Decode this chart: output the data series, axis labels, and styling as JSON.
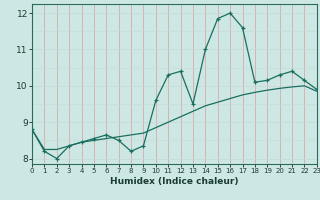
{
  "xlabel": "Humidex (Indice chaleur)",
  "bg_color": "#cde8e4",
  "grid_color_v": "#d9a0a0",
  "grid_color_h": "#c8d8d4",
  "line_color": "#1a6e60",
  "x_values": [
    0,
    1,
    2,
    3,
    4,
    5,
    6,
    7,
    8,
    9,
    10,
    11,
    12,
    13,
    14,
    15,
    16,
    17,
    18,
    19,
    20,
    21,
    22,
    23
  ],
  "y_main": [
    8.8,
    8.2,
    8.0,
    8.35,
    8.45,
    8.55,
    8.65,
    8.5,
    8.2,
    8.35,
    9.6,
    10.3,
    10.4,
    9.5,
    11.0,
    11.85,
    12.0,
    11.6,
    10.1,
    10.15,
    10.3,
    10.4,
    10.15,
    9.9
  ],
  "y_trend": [
    8.8,
    8.25,
    8.25,
    8.35,
    8.45,
    8.5,
    8.55,
    8.6,
    8.65,
    8.7,
    8.85,
    9.0,
    9.15,
    9.3,
    9.45,
    9.55,
    9.65,
    9.75,
    9.82,
    9.88,
    9.93,
    9.97,
    10.0,
    9.85
  ],
  "ylim": [
    7.85,
    12.25
  ],
  "yticks": [
    8,
    9,
    10,
    11,
    12
  ],
  "xlim": [
    0,
    23
  ]
}
